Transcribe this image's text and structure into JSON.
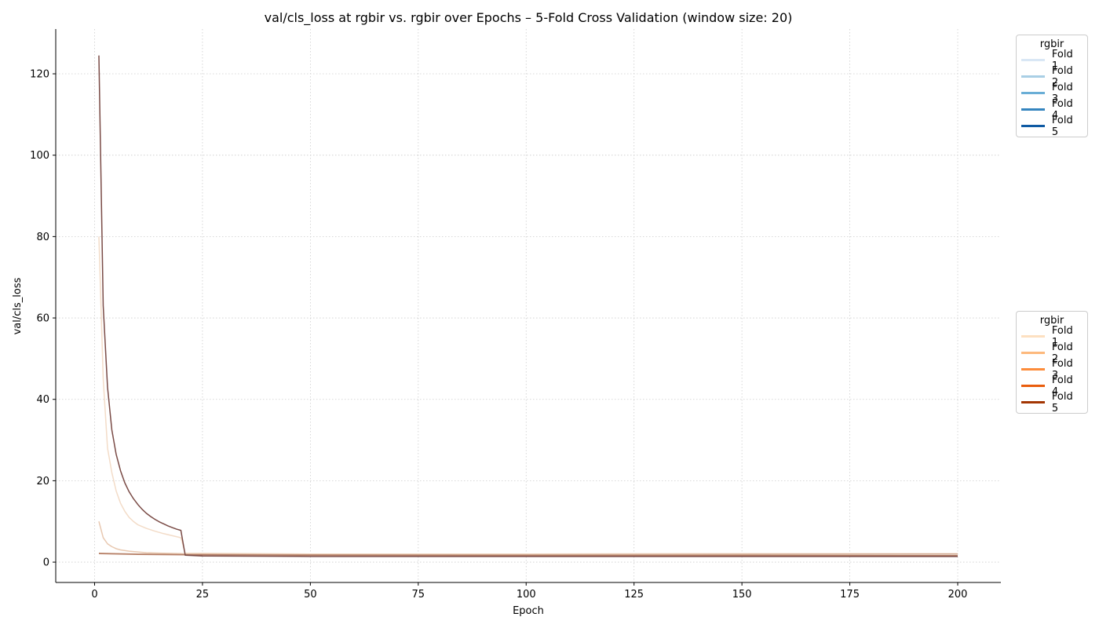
{
  "chart_data": {
    "type": "line",
    "title": "val/cls_loss at rgbir vs. rgbir over Epochs – 5-Fold Cross Validation (window size: 20)",
    "xlabel": "Epoch",
    "ylabel": "val/cls_loss",
    "xlim": [
      -9,
      210
    ],
    "ylim": [
      -5,
      131
    ],
    "xticks": [
      0,
      25,
      50,
      75,
      100,
      125,
      150,
      175,
      200
    ],
    "yticks": [
      0,
      20,
      40,
      60,
      80,
      100,
      120
    ],
    "grid": true,
    "legends": [
      {
        "title": "rgbir",
        "placement": "outside-top-right",
        "entries": [
          {
            "name": "Fold 1",
            "color": "#d9e7f5"
          },
          {
            "name": "Fold 2",
            "color": "#a9cfe5"
          },
          {
            "name": "Fold 3",
            "color": "#6aaed6"
          },
          {
            "name": "Fold 4",
            "color": "#3585bf"
          },
          {
            "name": "Fold 5",
            "color": "#0f5aa3"
          }
        ]
      },
      {
        "title": "rgbir",
        "placement": "outside-middle-right",
        "entries": [
          {
            "name": "Fold 1",
            "color": "#fde0c1"
          },
          {
            "name": "Fold 2",
            "color": "#fdb97d"
          },
          {
            "name": "Fold 3",
            "color": "#fd8c3b"
          },
          {
            "name": "Fold 4",
            "color": "#e95d0d"
          },
          {
            "name": "Fold 5",
            "color": "#a33603"
          }
        ]
      }
    ],
    "series": [
      {
        "color": "#f3dcc8",
        "x": [
          1,
          2,
          3,
          4,
          5,
          6,
          7,
          8,
          9,
          10,
          12,
          14,
          16,
          18,
          20,
          21,
          50,
          100,
          150,
          200
        ],
        "y": [
          80,
          45,
          28,
          22,
          17.5,
          14.5,
          12.5,
          11,
          10,
          9.2,
          8.3,
          7.6,
          7,
          6.5,
          6,
          2.2,
          2.0,
          2.0,
          2.1,
          2.1
        ]
      },
      {
        "color": "#e8c8b0",
        "x": [
          1,
          2,
          3,
          4,
          5,
          6,
          8,
          10,
          12,
          15,
          20,
          21,
          50,
          100,
          150,
          200
        ],
        "y": [
          10,
          6,
          4.5,
          3.8,
          3.3,
          3.0,
          2.7,
          2.5,
          2.3,
          2.2,
          2.1,
          2.0,
          1.9,
          1.9,
          2.0,
          2.0
        ]
      },
      {
        "color": "#d0a890",
        "x": [
          1,
          10,
          21,
          50,
          100,
          150,
          200
        ],
        "y": [
          2.2,
          2.0,
          1.9,
          1.8,
          1.8,
          1.9,
          2.0
        ]
      },
      {
        "color": "#b57e66",
        "x": [
          1,
          10,
          21,
          50,
          100,
          150,
          200
        ],
        "y": [
          2.1,
          1.9,
          1.8,
          1.7,
          1.6,
          1.6,
          1.6
        ]
      },
      {
        "color": "#7a4b46",
        "x": [
          1,
          2,
          3,
          4,
          5,
          6,
          7,
          8,
          9,
          10,
          11,
          12,
          13,
          14,
          15,
          16,
          17,
          18,
          19,
          20,
          21,
          25,
          50,
          100,
          150,
          200
        ],
        "y": [
          124.5,
          63,
          43,
          32.5,
          26.5,
          22.5,
          19.5,
          17.3,
          15.6,
          14.2,
          13.0,
          12.0,
          11.2,
          10.5,
          9.9,
          9.4,
          8.9,
          8.5,
          8.1,
          7.8,
          1.7,
          1.5,
          1.4,
          1.4,
          1.4,
          1.4
        ]
      }
    ]
  }
}
